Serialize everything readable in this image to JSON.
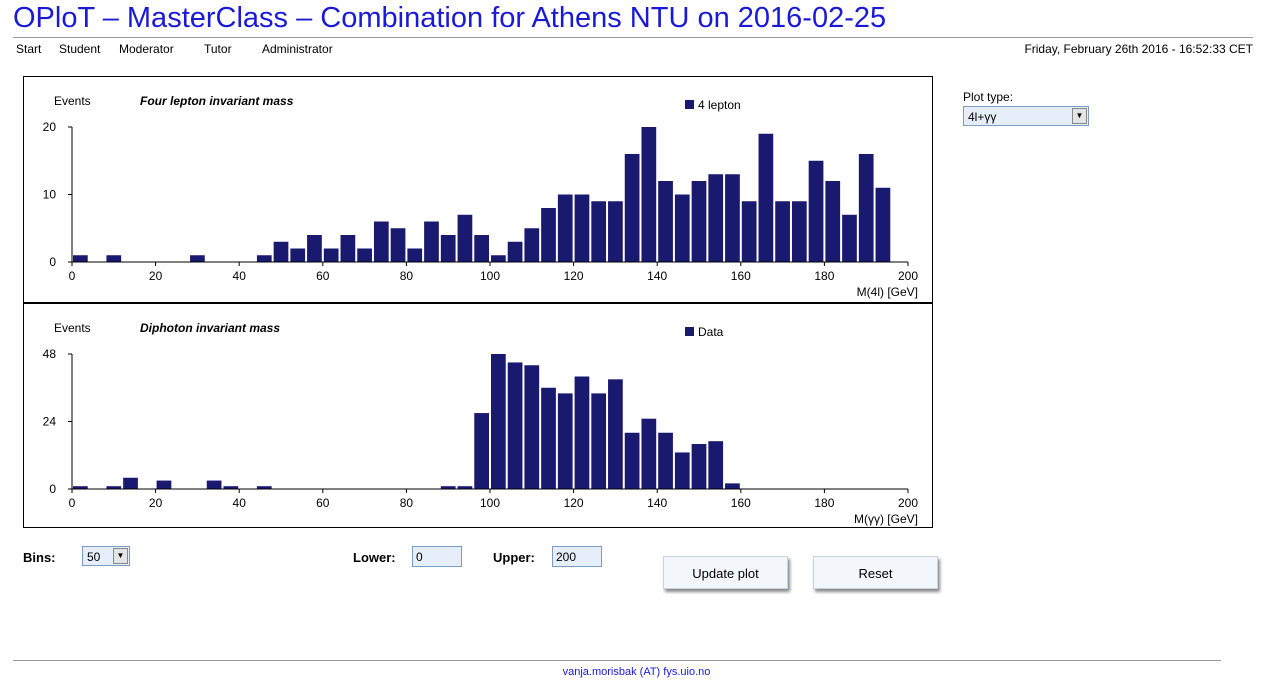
{
  "header": {
    "title": "OPloT – MasterClass – Combination for Athens NTU on 2016-02-25",
    "datetime": "Friday, February 26th 2016 - 16:52:33 CET"
  },
  "nav": {
    "items": [
      "Start",
      "Student",
      "Moderator",
      "Tutor",
      "Administrator"
    ]
  },
  "colors": {
    "bar": "#191970",
    "title": "#1a1ad6"
  },
  "chart_data": [
    {
      "type": "bar",
      "title": "Four lepton invariant mass",
      "ylabel": "Events",
      "xlabel": "M(4l) [GeV]",
      "legend": "4 lepton",
      "xlim": [
        0,
        200
      ],
      "ylim": [
        0,
        20
      ],
      "yticks": [
        0,
        10,
        20
      ],
      "xticks": [
        0,
        20,
        40,
        60,
        80,
        100,
        120,
        140,
        160,
        180,
        200
      ],
      "bin_width": 4,
      "values": [
        1,
        0,
        1,
        0,
        0,
        0,
        0,
        1,
        0,
        0,
        0,
        1,
        3,
        2,
        4,
        2,
        4,
        2,
        6,
        5,
        2,
        6,
        4,
        7,
        4,
        1,
        3,
        5,
        8,
        10,
        10,
        9,
        9,
        16,
        20,
        12,
        10,
        12,
        13,
        13,
        9,
        19,
        9,
        9,
        15,
        12,
        7,
        16,
        11,
        0
      ]
    },
    {
      "type": "bar",
      "title": "Diphoton invariant mass",
      "ylabel": "Events",
      "xlabel": "M(γγ) [GeV]",
      "legend": "Data",
      "xlim": [
        0,
        200
      ],
      "ylim": [
        0,
        48
      ],
      "yticks": [
        0,
        24,
        48
      ],
      "xticks": [
        0,
        20,
        40,
        60,
        80,
        100,
        120,
        140,
        160,
        180,
        200
      ],
      "bin_width": 4,
      "values": [
        1,
        0,
        1,
        4,
        0,
        3,
        0,
        0,
        3,
        1,
        0,
        1,
        0,
        0,
        0,
        0,
        0,
        0,
        0,
        0,
        0,
        0,
        1,
        1,
        27,
        48,
        45,
        44,
        36,
        34,
        40,
        34,
        39,
        20,
        25,
        20,
        13,
        16,
        17,
        2,
        0,
        0,
        0,
        0,
        0,
        0,
        0,
        0,
        0,
        0
      ]
    }
  ],
  "plot_type": {
    "label": "Plot type:",
    "selected": "4l+γγ"
  },
  "controls": {
    "bins_label": "Bins:",
    "bins_selected": "50",
    "lower_label": "Lower:",
    "lower_value": "0",
    "upper_label": "Upper:",
    "upper_value": "200",
    "update_label": "Update plot",
    "reset_label": "Reset"
  },
  "footer": {
    "contact": "vanja.morisbak (AT) fys.uio.no"
  }
}
